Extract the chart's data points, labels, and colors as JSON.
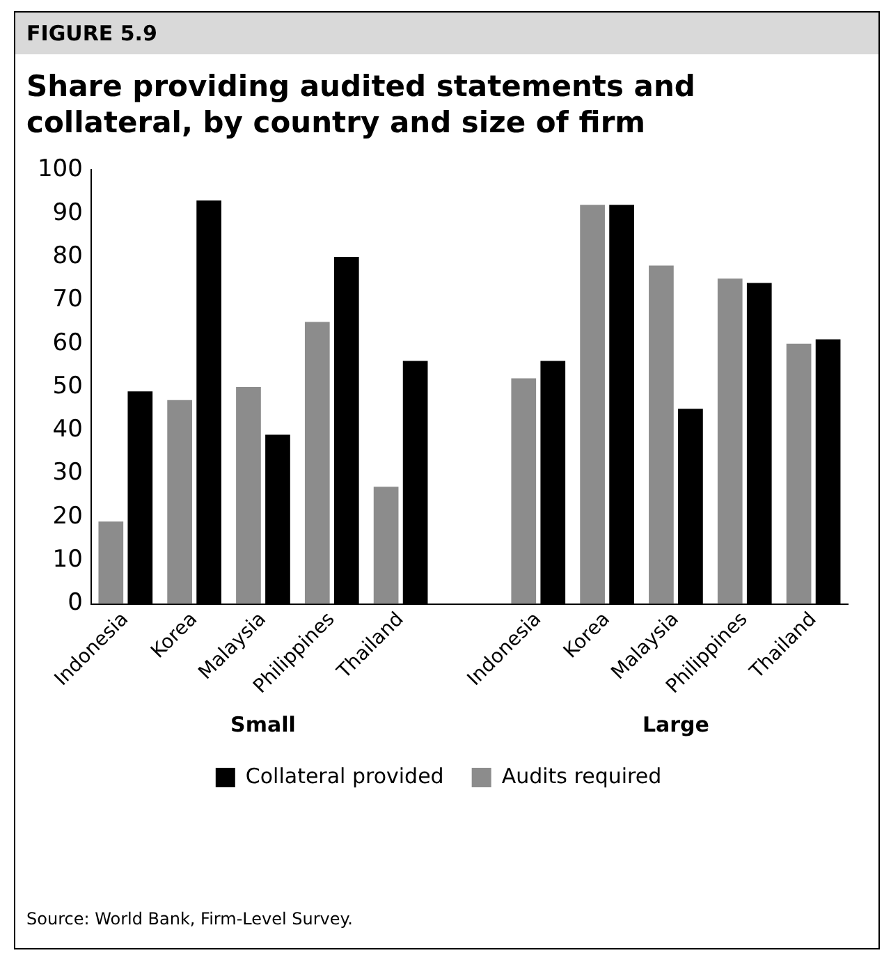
{
  "chart_data": {
    "type": "bar",
    "title": "Share providing audited statements and collateral, by country and size of firm",
    "categories": [
      "Indonesia",
      "Korea",
      "Malaysia",
      "Philippines",
      "Thailand",
      null,
      "Indonesia",
      "Korea",
      "Malaysia",
      "Philippines",
      "Thailand"
    ],
    "series": [
      {
        "name": "Audits required",
        "color": "#8c8c8c",
        "values": [
          19,
          47,
          50,
          65,
          27,
          null,
          52,
          92,
          78,
          75,
          60
        ]
      },
      {
        "name": "Collateral provided",
        "color": "#000000",
        "values": [
          49,
          93,
          39,
          80,
          56,
          null,
          56,
          92,
          45,
          74,
          61
        ]
      }
    ],
    "ylim": [
      0,
      100
    ],
    "yticks": [
      0,
      10,
      20,
      30,
      40,
      50,
      60,
      70,
      80,
      90,
      100
    ],
    "grid": false,
    "legend": "bottom",
    "annotations": [
      "FIGURE 5.9",
      "Small",
      "Large",
      "Source: World Bank, Firm-Level Survey."
    ]
  }
}
